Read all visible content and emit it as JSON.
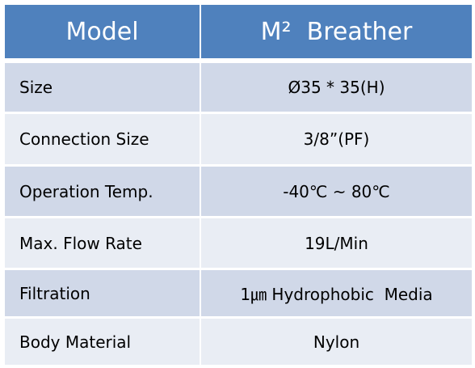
{
  "table": {
    "header": [
      "Model",
      "M²  Breather"
    ],
    "rows": [
      [
        "Size",
        "Ø35 * 35(H)"
      ],
      [
        "Connection Size",
        "3/8”(PF)"
      ],
      [
        "Operation Temp.",
        "-40℃ ~ 80℃"
      ],
      [
        "Max. Flow Rate",
        "19L/Min"
      ],
      [
        "Filtration",
        "1㎛ Hydrophobic  Media"
      ],
      [
        "Body Material",
        "Nylon"
      ]
    ]
  }
}
